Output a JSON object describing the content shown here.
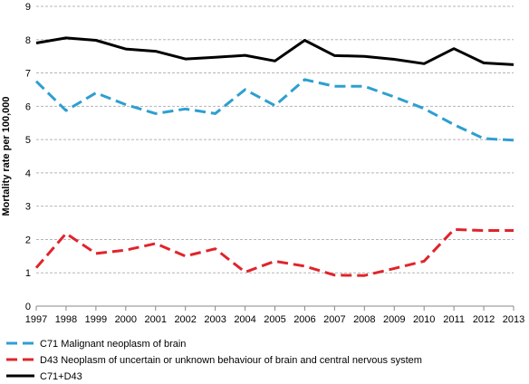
{
  "chart_data": {
    "type": "line",
    "title": "",
    "xlabel": "",
    "ylabel": "Mortality rate per 100,000",
    "x": [
      "1997",
      "1998",
      "1999",
      "2000",
      "2001",
      "2002",
      "2003",
      "2004",
      "2005",
      "2006",
      "2007",
      "2008",
      "2009",
      "2010",
      "2011",
      "2012",
      "2013"
    ],
    "y_ticks": [
      "0",
      "1",
      "2",
      "3",
      "4",
      "5",
      "6",
      "7",
      "8",
      "9"
    ],
    "ylim": [
      0,
      9
    ],
    "grid": "horizontal dashed",
    "legend_position": "bottom-left",
    "series": [
      {
        "name": "C71 Malignant neoplasm of brain",
        "color": "#2e9fd0",
        "style": "dashed",
        "values": [
          6.75,
          5.87,
          6.4,
          6.05,
          5.78,
          5.92,
          5.78,
          6.5,
          6.02,
          6.8,
          6.6,
          6.6,
          6.28,
          5.93,
          5.45,
          5.03,
          4.98
        ]
      },
      {
        "name": "D43 Neoplasm of uncertain or unknown behaviour of brain and central nervous system",
        "color": "#e0242b",
        "style": "dashed",
        "values": [
          1.15,
          2.18,
          1.58,
          1.68,
          1.88,
          1.5,
          1.72,
          1.02,
          1.35,
          1.2,
          0.93,
          0.92,
          1.13,
          1.35,
          2.3,
          2.27,
          2.27
        ]
      },
      {
        "name": "C71+D43",
        "color": "#000000",
        "style": "solid",
        "values": [
          7.9,
          8.05,
          7.98,
          7.72,
          7.65,
          7.42,
          7.47,
          7.53,
          7.36,
          7.98,
          7.52,
          7.5,
          7.41,
          7.28,
          7.73,
          7.3,
          7.25
        ]
      }
    ]
  }
}
